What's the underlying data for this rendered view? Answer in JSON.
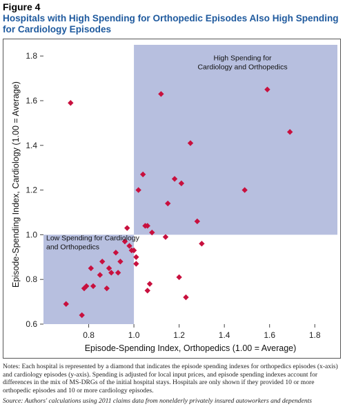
{
  "figure": {
    "label": "Figure 4",
    "title": "Hospitals with High Spending for Orthopedic Episodes Also High Spending for Cardiology Episodes"
  },
  "notes": "Notes: Each hospital is represented by a diamond that indicates the episode spending indexes for orthopedics episodes (x-axis) and cardiology episodes (y-axis). Spending is adjusted for local input prices, and episode spending indexes account for differences in the mix of MS-DRGs of the initial hospital stays. Hospitals are only shown if they provided 10 or more orthopedic episodes and 10 or more cardiology episodes.",
  "source": "Source: Authors' calculations using 2011 claims data from nonelderly privately insured autoworkers and dependents",
  "colors": {
    "region_fill": "#b7bfdf",
    "marker": "#c8103e",
    "title": "#1f5a9e"
  },
  "chart_data": {
    "type": "scatter",
    "title": "Hospitals with High Spending for Orthopedic Episodes Also High Spending for Cardiology Episodes",
    "xlabel": "Episode-Spending Index, Orthopedics (1.00 = Average)",
    "ylabel": "Episode-Spending Index, Cardiology (1.00 = Average)",
    "xlim": [
      0.6,
      1.9
    ],
    "ylim": [
      0.6,
      1.85
    ],
    "x_ticks": [
      0.8,
      1.0,
      1.2,
      1.4,
      1.6,
      1.8
    ],
    "x_tick_labels": [
      "0.8",
      "1.0",
      "1.2",
      "1.4",
      "1.6",
      "1.8"
    ],
    "y_ticks": [
      0.6,
      0.8,
      1.0,
      1.2,
      1.4,
      1.6,
      1.8
    ],
    "y_tick_labels": [
      "0.6",
      "0.8",
      "1.0",
      "1.2",
      "1.4",
      "1.6",
      "1.8"
    ],
    "grid": false,
    "marker": "diamond",
    "regions": [
      {
        "label_lines": [
          "High Spending for",
          "Cardiology and Orthopedics"
        ],
        "x": [
          1.0,
          1.9
        ],
        "y": [
          1.0,
          1.85
        ]
      },
      {
        "label_lines": [
          "Low Spending for Cardiology",
          "and Orthopedics"
        ],
        "x": [
          0.6,
          1.0
        ],
        "y": [
          0.6,
          1.0
        ]
      }
    ],
    "points": [
      {
        "x": 0.7,
        "y": 0.69
      },
      {
        "x": 0.72,
        "y": 1.59
      },
      {
        "x": 0.77,
        "y": 0.64
      },
      {
        "x": 0.78,
        "y": 0.76
      },
      {
        "x": 0.79,
        "y": 0.77
      },
      {
        "x": 0.81,
        "y": 0.85
      },
      {
        "x": 0.82,
        "y": 0.77
      },
      {
        "x": 0.85,
        "y": 0.82
      },
      {
        "x": 0.86,
        "y": 0.88
      },
      {
        "x": 0.88,
        "y": 0.76
      },
      {
        "x": 0.89,
        "y": 0.85
      },
      {
        "x": 0.9,
        "y": 0.83
      },
      {
        "x": 0.92,
        "y": 0.92
      },
      {
        "x": 0.93,
        "y": 0.83
      },
      {
        "x": 0.94,
        "y": 0.88
      },
      {
        "x": 0.96,
        "y": 0.97
      },
      {
        "x": 0.97,
        "y": 1.03
      },
      {
        "x": 0.98,
        "y": 0.95
      },
      {
        "x": 0.99,
        "y": 0.93
      },
      {
        "x": 1.0,
        "y": 0.93
      },
      {
        "x": 1.01,
        "y": 0.87
      },
      {
        "x": 1.01,
        "y": 0.9
      },
      {
        "x": 1.02,
        "y": 1.2
      },
      {
        "x": 1.04,
        "y": 1.27
      },
      {
        "x": 1.05,
        "y": 1.04
      },
      {
        "x": 1.06,
        "y": 1.04
      },
      {
        "x": 1.06,
        "y": 0.75
      },
      {
        "x": 1.07,
        "y": 0.78
      },
      {
        "x": 1.08,
        "y": 1.01
      },
      {
        "x": 1.12,
        "y": 1.63
      },
      {
        "x": 1.14,
        "y": 0.99
      },
      {
        "x": 1.15,
        "y": 1.14
      },
      {
        "x": 1.18,
        "y": 1.25
      },
      {
        "x": 1.2,
        "y": 0.81
      },
      {
        "x": 1.21,
        "y": 1.23
      },
      {
        "x": 1.23,
        "y": 0.72
      },
      {
        "x": 1.25,
        "y": 1.41
      },
      {
        "x": 1.28,
        "y": 1.06
      },
      {
        "x": 1.3,
        "y": 0.96
      },
      {
        "x": 1.49,
        "y": 1.2
      },
      {
        "x": 1.59,
        "y": 1.65
      },
      {
        "x": 1.69,
        "y": 1.46
      }
    ]
  }
}
